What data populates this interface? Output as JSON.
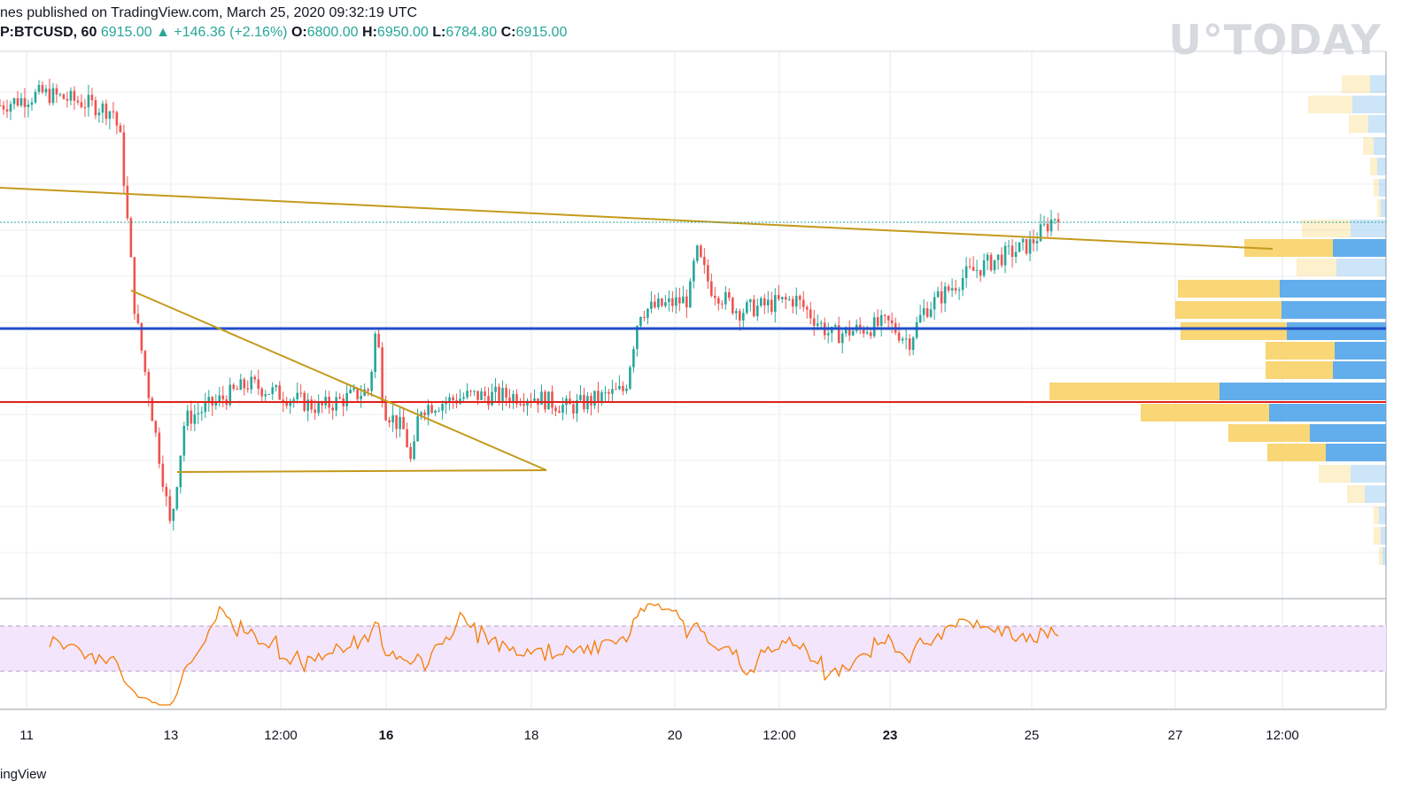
{
  "header": {
    "published": "nes published on TradingView.com, March 25, 2020 09:32:19 UTC",
    "symbol": "P:BTCUSD, 60",
    "last": "6915.00",
    "change_arrow": "▲",
    "change": "+146.36 (+2.16%)",
    "o_label": "O:",
    "o_value": "6800.00",
    "h_label": "H:",
    "h_value": "6950.00",
    "l_label": "L:",
    "l_value": "6784.80",
    "c_label": "C:",
    "c_value": "6915.00"
  },
  "watermark": "U°TODAY",
  "footer": "ingView",
  "colors": {
    "up": "#26a69a",
    "down": "#ef5350",
    "trendline": "#c49a1c",
    "support_blue": "#1f4fc7",
    "support_red": "#e0201a",
    "rsi": "#f57c00",
    "rsi_band": "#f3e5fb",
    "vp_up": "#f9d46f",
    "vp_down": "#5aa9ea"
  },
  "chart_data": {
    "type": "candlestick",
    "symbol": "BTCUSD",
    "interval": "60",
    "x_tick_labels": [
      {
        "label": "11",
        "bold": false
      },
      {
        "label": "13",
        "bold": false
      },
      {
        "label": "12:00",
        "bold": false
      },
      {
        "label": "16",
        "bold": true
      },
      {
        "label": "18",
        "bold": false
      },
      {
        "label": "20",
        "bold": false
      },
      {
        "label": "12:00",
        "bold": false
      },
      {
        "label": "23",
        "bold": true
      },
      {
        "label": "25",
        "bold": false
      },
      {
        "label": "27",
        "bold": false
      },
      {
        "label": "12:00",
        "bold": false
      }
    ],
    "ohlc_last": {
      "open": 6800.0,
      "high": 6950.0,
      "low": 6784.8,
      "close": 6915.0
    },
    "price_path_keypoints": [
      [
        0,
        7800
      ],
      [
        6,
        7900
      ],
      [
        12,
        7820
      ],
      [
        16,
        7750
      ],
      [
        17,
        7500
      ],
      [
        19,
        6100
      ],
      [
        23,
        4700
      ],
      [
        24,
        4300
      ],
      [
        26,
        5200
      ],
      [
        35,
        5500
      ],
      [
        45,
        5300
      ],
      [
        52,
        5450
      ],
      [
        53,
        6000
      ],
      [
        54,
        5300
      ],
      [
        57,
        5100
      ],
      [
        58,
        4800
      ],
      [
        59,
        5300
      ],
      [
        66,
        5400
      ],
      [
        75,
        5400
      ],
      [
        80,
        5300
      ],
      [
        88,
        5450
      ],
      [
        90,
        6100
      ],
      [
        97,
        6200
      ],
      [
        98,
        6600
      ],
      [
        100,
        6300
      ],
      [
        104,
        6100
      ],
      [
        112,
        6200
      ],
      [
        117,
        5900
      ],
      [
        125,
        6000
      ],
      [
        128,
        5850
      ],
      [
        130,
        6100
      ],
      [
        136,
        6400
      ],
      [
        141,
        6550
      ],
      [
        145,
        6650
      ],
      [
        149,
        6915
      ]
    ],
    "rsi_overbought": 70,
    "rsi_oversold": 30,
    "grid": true,
    "volume_profile": true
  }
}
